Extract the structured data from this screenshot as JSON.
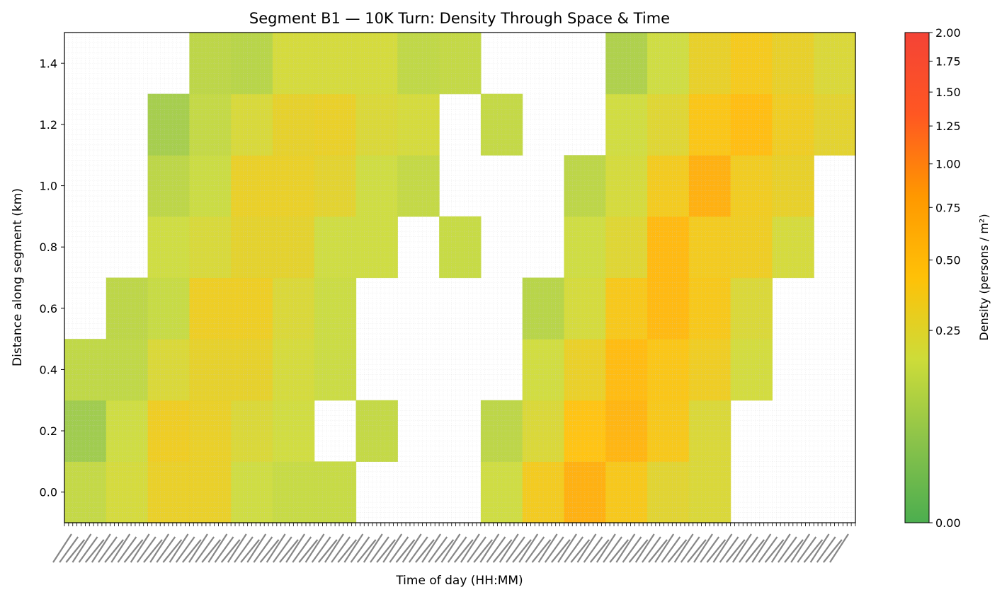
{
  "chart_data": {
    "type": "heatmap",
    "title": "Segment B1 — 10K Turn: Density Through Space & Time",
    "xlabel": "Time of day (HH:MM)",
    "ylabel": "Distance along segment (km)",
    "colorbar_label": "Density (persons / m²)",
    "y_ticks": [
      "0.0",
      "0.2",
      "0.4",
      "0.6",
      "0.8",
      "1.0",
      "1.2",
      "1.4"
    ],
    "y_tick_values": [
      0.0,
      0.2,
      0.4,
      0.6,
      0.8,
      1.0,
      1.2,
      1.4
    ],
    "ylim": [
      -0.1,
      1.5
    ],
    "colorbar_ticks": [
      "0.00",
      "0.25",
      "0.50",
      "0.75",
      "1.00",
      "1.25",
      "1.50",
      "1.75",
      "2.00"
    ],
    "colorbar_tick_values": [
      0.0,
      0.25,
      0.5,
      0.75,
      1.0,
      1.25,
      1.5,
      1.75,
      2.0
    ],
    "colorbar_range": [
      0.0,
      2.0
    ],
    "colorbar_scale": "power-normalized",
    "colors": [
      "#4cae4f",
      "#8bc34a",
      "#cddc39",
      "#ffc107",
      "#ff9800",
      "#ff5722",
      "#f44336"
    ],
    "row_distances_km": [
      0.0,
      0.2,
      0.4,
      0.6,
      0.8,
      1.0,
      1.2,
      1.4
    ],
    "time_bins": 19,
    "x_tick_labels_note": "x tick labels are dense and overlapping (illegible)",
    "grid": true,
    "density": [
      [
        0.14,
        0.2,
        0.3,
        0.3,
        0.17,
        0.15,
        0.15,
        null,
        null,
        null,
        0.17,
        0.35,
        0.6,
        0.38,
        0.25,
        0.22,
        null,
        null,
        null
      ],
      [
        0.06,
        0.17,
        0.33,
        0.3,
        0.22,
        0.18,
        null,
        0.14,
        null,
        null,
        0.12,
        0.22,
        0.43,
        0.55,
        0.38,
        0.22,
        null,
        null,
        null
      ],
      [
        0.13,
        0.13,
        0.22,
        0.28,
        0.28,
        0.2,
        0.16,
        null,
        null,
        null,
        null,
        0.18,
        0.3,
        0.5,
        0.4,
        0.33,
        0.19,
        null,
        null
      ],
      [
        null,
        0.12,
        0.15,
        0.32,
        0.32,
        0.22,
        0.16,
        null,
        null,
        null,
        null,
        0.11,
        0.2,
        0.38,
        0.52,
        0.38,
        0.22,
        null,
        null
      ],
      [
        null,
        null,
        0.17,
        0.21,
        0.27,
        0.27,
        0.17,
        0.17,
        null,
        0.15,
        null,
        null,
        0.17,
        0.24,
        0.52,
        0.35,
        0.33,
        0.2,
        null
      ],
      [
        null,
        null,
        0.12,
        0.16,
        0.3,
        0.3,
        0.26,
        0.17,
        0.14,
        null,
        null,
        null,
        0.12,
        0.2,
        0.35,
        0.6,
        0.34,
        0.29,
        null
      ],
      [
        null,
        null,
        0.07,
        0.14,
        0.21,
        0.28,
        0.3,
        0.22,
        0.2,
        null,
        0.14,
        null,
        null,
        0.18,
        0.24,
        0.4,
        0.48,
        0.33,
        0.26
      ],
      [
        null,
        null,
        null,
        0.12,
        0.11,
        0.2,
        0.2,
        0.2,
        0.13,
        0.14,
        null,
        null,
        null,
        0.09,
        0.17,
        0.29,
        0.36,
        0.29,
        0.22
      ]
    ]
  }
}
